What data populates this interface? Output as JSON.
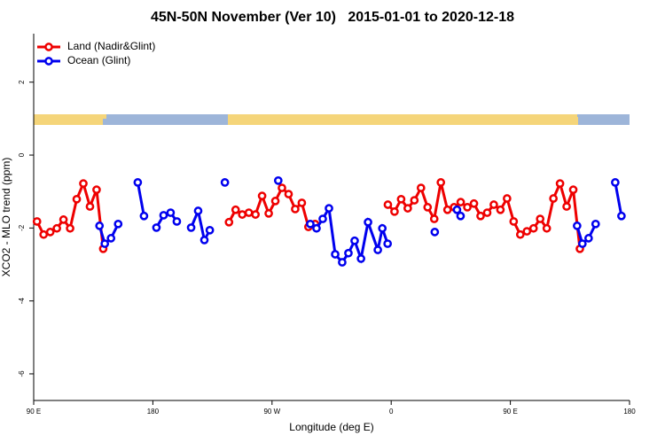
{
  "chart_data": {
    "type": "line",
    "title": "45N-50N November (Ver 10)   2015-01-01 to 2020-12-18",
    "x_label": "Longitude (deg E)",
    "y_label": "XCO2 - MLO trend (ppm)",
    "xlim": [
      90,
      540
    ],
    "ylim": [
      -6.73,
      3.33
    ],
    "xticks": [
      {
        "value": 90,
        "label": "90 E"
      },
      {
        "value": 180,
        "label": "180"
      },
      {
        "value": 270,
        "label": "90 W"
      },
      {
        "value": 360,
        "label": "0"
      },
      {
        "value": 450,
        "label": "90 E"
      },
      {
        "value": 540,
        "label": "180"
      }
    ],
    "yticks": [
      -6,
      -4,
      -2,
      0,
      2
    ],
    "legend": "top-left",
    "series": [
      {
        "name": "Land (Nadir&Glint)",
        "color": "#ee0000",
        "x": [
          92.5,
          97.5,
          102.5,
          107.5,
          112.5,
          117.5,
          122.5,
          127.5,
          132.5,
          137.5,
          142.5,
          190,
          237.5,
          242.5,
          247.5,
          252.5,
          257.5,
          262.5,
          267.5,
          272.5,
          277.5,
          282.5,
          287.5,
          292.5,
          297.5,
          302.5,
          330,
          357.5,
          362.5,
          367.5,
          372.5,
          377.5,
          382.5,
          387.5,
          392.5,
          397.5,
          402.5,
          407.5,
          412.5,
          417.5,
          422.5,
          427.5,
          432.5,
          437.5,
          442.5,
          447.5,
          452.5,
          457.5,
          462.5,
          467.5,
          472.5,
          477.5,
          482.5,
          487.5,
          492.5,
          497.5,
          502.5
        ],
        "values": [
          -1.82,
          -2.18,
          -2.11,
          -2.01,
          -1.77,
          -2.01,
          -1.21,
          -0.78,
          -1.41,
          -0.95,
          -2.57,
          null,
          -1.84,
          -1.5,
          -1.63,
          -1.58,
          -1.63,
          -1.12,
          -1.6,
          -1.26,
          -0.9,
          -1.07,
          -1.48,
          -1.31,
          -1.97,
          -1.89,
          null,
          -1.36,
          -1.55,
          -1.21,
          -1.46,
          -1.24,
          -0.9,
          -1.43,
          -1.75,
          -0.75,
          -1.5,
          -1.43,
          -1.29,
          -1.43,
          -1.33,
          -1.67,
          -1.58,
          -1.36,
          -1.5,
          -1.19,
          -1.82,
          -2.18,
          -2.09,
          -2.01,
          -1.75,
          -2.01,
          -1.19,
          -0.78,
          -1.41,
          -0.95,
          -2.57
        ]
      },
      {
        "name": "Ocean (Glint)",
        "color": "#0000ee",
        "x": [
          139.7,
          143.7,
          148.4,
          153.8,
          160,
          168.6,
          173.3,
          178,
          182.7,
          188.1,
          193.4,
          198.1,
          203,
          208.9,
          214.2,
          218.9,
          223,
          230,
          234.4,
          250,
          274.7,
          290,
          298.9,
          303.6,
          308.3,
          313,
          317.7,
          323,
          327.7,
          332.4,
          337.2,
          342.5,
          349.9,
          353.3,
          357.3,
          380,
          392.9,
          400,
          409.7,
          412.4,
          450,
          500.4,
          504.4,
          509.1,
          514.4,
          520,
          529.2,
          533.9
        ],
        "values": [
          -1.94,
          -2.43,
          -2.28,
          -1.89,
          null,
          -0.75,
          -1.67,
          null,
          -1.99,
          -1.65,
          -1.58,
          -1.82,
          null,
          -1.99,
          -1.53,
          -2.33,
          -2.06,
          null,
          -0.75,
          null,
          -0.7,
          null,
          -1.89,
          -2.01,
          -1.75,
          -1.46,
          -2.72,
          -2.94,
          -2.69,
          -2.35,
          -2.84,
          -1.84,
          -2.6,
          -2.01,
          -2.43,
          null,
          -2.11,
          null,
          -1.5,
          -1.67,
          null,
          -1.94,
          -2.43,
          -2.28,
          -1.89,
          null,
          -0.75,
          -1.67
        ]
      }
    ]
  }
}
